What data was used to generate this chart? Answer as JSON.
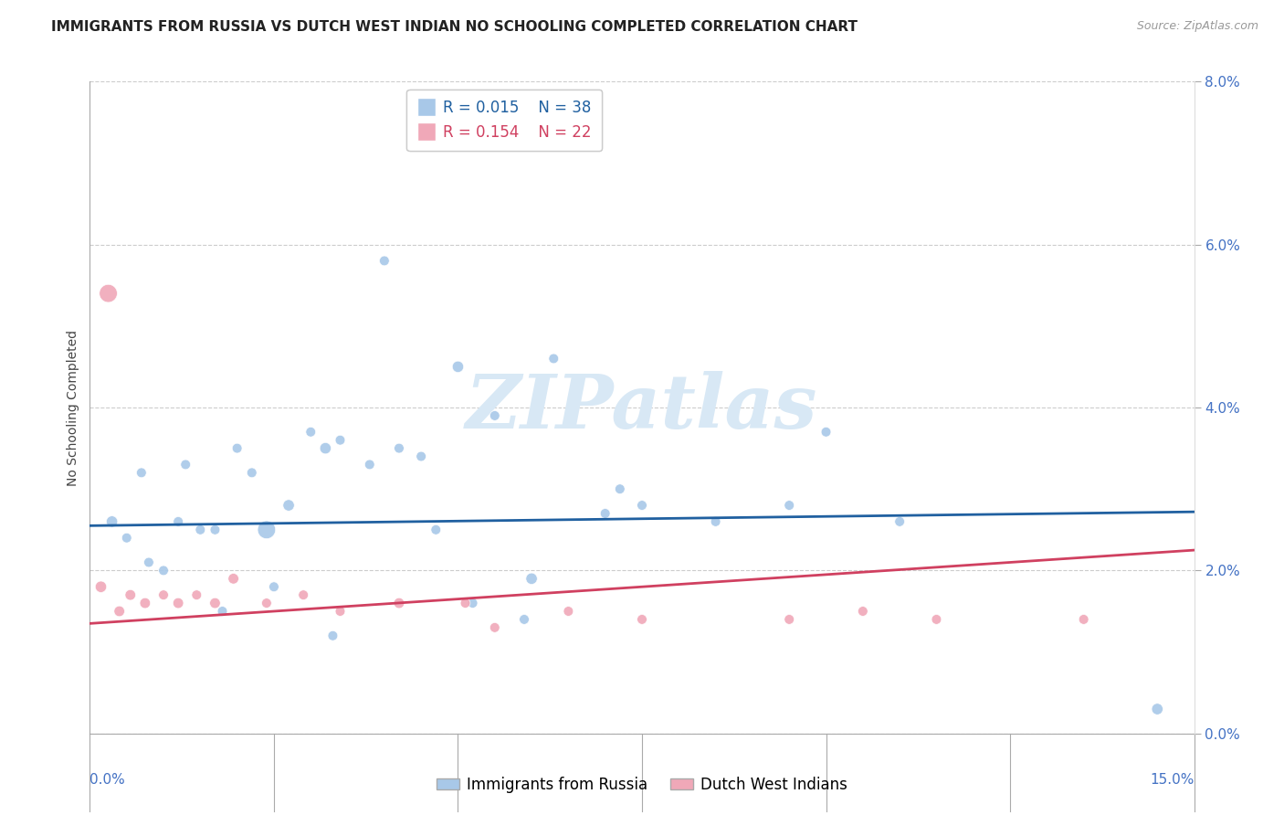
{
  "title": "IMMIGRANTS FROM RUSSIA VS DUTCH WEST INDIAN NO SCHOOLING COMPLETED CORRELATION CHART",
  "source": "Source: ZipAtlas.com",
  "ylabel": "No Schooling Completed",
  "xmin": 0.0,
  "xmax": 15.0,
  "ymin": 0.0,
  "ymax": 8.0,
  "right_ytick_vals": [
    0.0,
    2.0,
    4.0,
    6.0,
    8.0
  ],
  "right_ytick_labels": [
    "0.0%",
    "2.0%",
    "4.0%",
    "6.0%",
    "8.0%"
  ],
  "legend_r1": "R = 0.015",
  "legend_n1": "N = 38",
  "legend_r2": "R = 0.154",
  "legend_n2": "N = 22",
  "legend_label1": "Immigrants from Russia",
  "legend_label2": "Dutch West Indians",
  "blue_color": "#a8c8e8",
  "pink_color": "#f0a8b8",
  "line_blue": "#2060a0",
  "line_pink": "#d04060",
  "blue_scatter_x": [
    0.3,
    0.5,
    0.8,
    1.0,
    1.3,
    1.5,
    1.8,
    2.0,
    2.2,
    2.4,
    2.7,
    3.0,
    3.2,
    3.4,
    4.0,
    4.2,
    4.5,
    5.0,
    5.5,
    6.3,
    7.0,
    7.5,
    0.7,
    1.2,
    1.7,
    2.5,
    3.3,
    3.8,
    4.7,
    5.2,
    5.9,
    6.0,
    7.2,
    8.5,
    9.5,
    10.0,
    11.0,
    14.5
  ],
  "blue_scatter_y": [
    2.6,
    2.4,
    2.1,
    2.0,
    3.3,
    2.5,
    1.5,
    3.5,
    3.2,
    2.5,
    2.8,
    3.7,
    3.5,
    3.6,
    5.8,
    3.5,
    3.4,
    4.5,
    3.9,
    4.6,
    2.7,
    2.8,
    3.2,
    2.6,
    2.5,
    1.8,
    1.2,
    3.3,
    2.5,
    1.6,
    1.4,
    1.9,
    3.0,
    2.6,
    2.8,
    3.7,
    2.6,
    0.3
  ],
  "blue_scatter_size": [
    80,
    60,
    60,
    60,
    60,
    60,
    60,
    60,
    60,
    200,
    80,
    60,
    80,
    60,
    60,
    60,
    60,
    80,
    60,
    60,
    60,
    60,
    60,
    60,
    60,
    60,
    60,
    60,
    60,
    60,
    60,
    80,
    60,
    60,
    60,
    60,
    60,
    80
  ],
  "pink_scatter_x": [
    0.15,
    0.4,
    0.55,
    0.75,
    1.0,
    1.2,
    1.45,
    1.7,
    1.95,
    2.4,
    2.9,
    3.4,
    4.2,
    5.1,
    5.5,
    6.5,
    7.5,
    9.5,
    10.5,
    11.5,
    13.5,
    0.25
  ],
  "pink_scatter_y": [
    1.8,
    1.5,
    1.7,
    1.6,
    1.7,
    1.6,
    1.7,
    1.6,
    1.9,
    1.6,
    1.7,
    1.5,
    1.6,
    1.6,
    1.3,
    1.5,
    1.4,
    1.4,
    1.5,
    1.4,
    1.4,
    5.4
  ],
  "pink_scatter_size": [
    80,
    70,
    70,
    70,
    60,
    70,
    60,
    70,
    70,
    60,
    60,
    60,
    70,
    60,
    60,
    60,
    60,
    60,
    60,
    60,
    60,
    200
  ],
  "blue_line_x": [
    0.0,
    15.0
  ],
  "blue_line_y": [
    2.55,
    2.72
  ],
  "pink_line_x": [
    0.0,
    15.0
  ],
  "pink_line_y": [
    1.35,
    2.25
  ],
  "watermark_text": "ZIPatlas",
  "watermark_color": "#d8e8f5",
  "background_color": "#ffffff",
  "grid_color": "#cccccc",
  "title_fontsize": 11,
  "axis_label_fontsize": 10,
  "tick_fontsize": 11,
  "legend_fontsize": 12
}
